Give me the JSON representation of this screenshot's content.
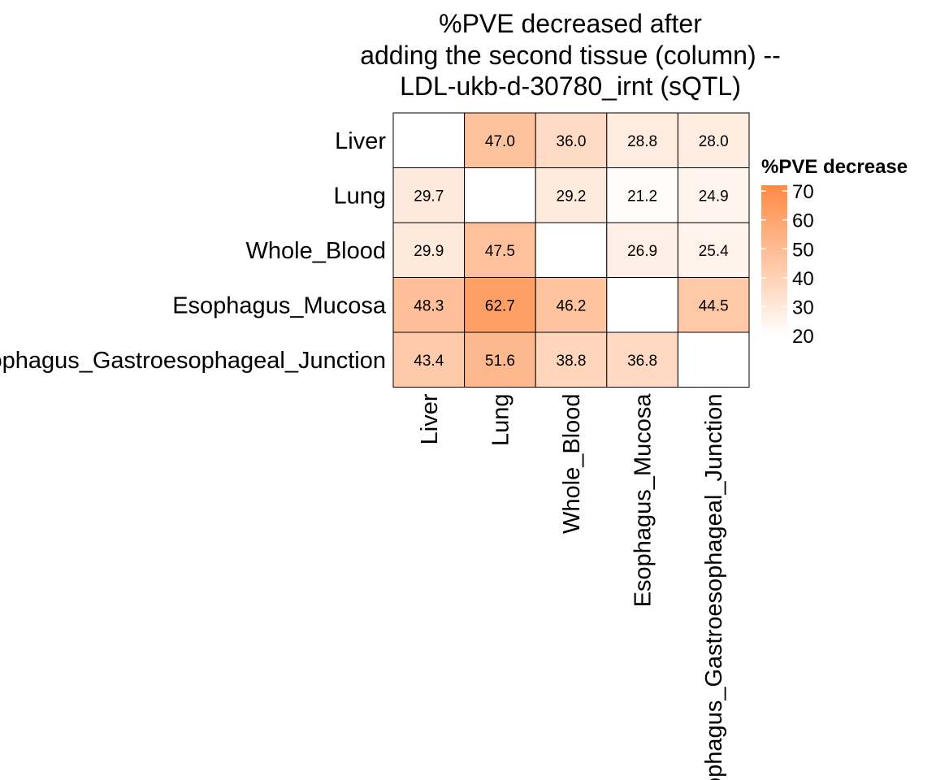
{
  "chart_data": {
    "type": "heatmap",
    "title_lines": [
      "%PVE decreased after",
      "adding the second tissue (column) --",
      "LDL-ukb-d-30780_irnt (sQTL)"
    ],
    "rows": [
      "Liver",
      "Lung",
      "Whole_Blood",
      "Esophagus_Mucosa",
      "Esophagus_Gastroesophageal_Junction"
    ],
    "columns": [
      "Liver",
      "Lung",
      "Whole_Blood",
      "Esophagus_Mucosa",
      "Esophagus_Gastroesophageal_Junction"
    ],
    "values": [
      [
        null,
        47.0,
        36.0,
        28.8,
        28.0
      ],
      [
        29.7,
        null,
        29.2,
        21.2,
        24.9
      ],
      [
        29.9,
        47.5,
        null,
        26.9,
        25.4
      ],
      [
        48.3,
        62.7,
        46.2,
        null,
        44.5
      ],
      [
        43.4,
        51.6,
        38.8,
        36.8,
        null
      ]
    ],
    "value_labels": [
      [
        "",
        "47.0",
        "36.0",
        "28.8",
        "28.0"
      ],
      [
        "29.7",
        "",
        "29.2",
        "21.2",
        "24.9"
      ],
      [
        "29.9",
        "47.5",
        "",
        "26.9",
        "25.4"
      ],
      [
        "48.3",
        "62.7",
        "46.2",
        "",
        "44.5"
      ],
      [
        "43.4",
        "51.6",
        "38.8",
        "36.8",
        ""
      ]
    ],
    "legend": {
      "title": "%PVE decrease",
      "ticks": [
        20,
        30,
        40,
        50,
        60,
        70
      ],
      "tick_labels": [
        "20",
        "30",
        "40",
        "50",
        "60",
        "70"
      ],
      "range": [
        20,
        72
      ],
      "low_color": "#ffffff",
      "high_color": "#fe8a43",
      "placement": "right"
    },
    "na_color": "#ffffff",
    "grid_color": "#000000"
  }
}
